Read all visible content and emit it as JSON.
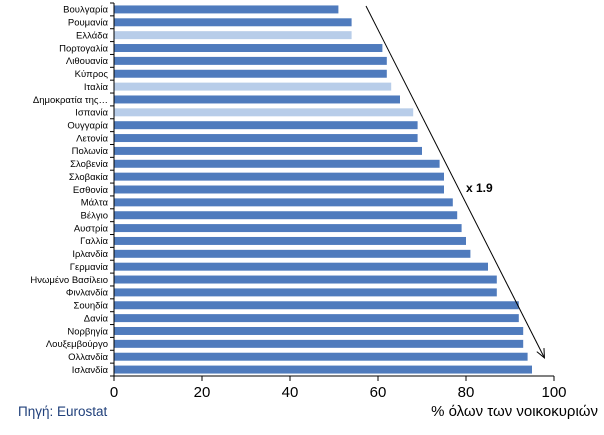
{
  "chart_data": {
    "type": "bar",
    "orientation": "horizontal",
    "categories": [
      "Βουλγαρία",
      "Ρουμανία",
      "Ελλάδα",
      "Πορτογαλία",
      "Λιθουανία",
      "Κύπρος",
      "Ιταλία",
      "Δημοκρατία της…",
      "Ισπανία",
      "Ουγγαρία",
      "Λετονία",
      "Πολωνία",
      "Σλοβενία",
      "Σλοβακία",
      "Εσθονία",
      "Μάλτα",
      "Βέλγιο",
      "Αυστρία",
      "Γαλλία",
      "Ιρλανδία",
      "Γερμανία",
      "Ηνωμένο Βασίλειο",
      "Φινλανδία",
      "Σουηδία",
      "Δανία",
      "Νορβηγία",
      "Λουξεμβούργο",
      "Ολλανδία",
      "Ισλανδία"
    ],
    "values": [
      51,
      54,
      54,
      61,
      62,
      62,
      63,
      65,
      68,
      69,
      69,
      70,
      74,
      75,
      75,
      77,
      78,
      79,
      80,
      81,
      85,
      87,
      87,
      92,
      92,
      93,
      93,
      94,
      95
    ],
    "highlighted": [
      false,
      false,
      true,
      false,
      false,
      false,
      true,
      false,
      true,
      false,
      false,
      false,
      false,
      false,
      false,
      false,
      false,
      false,
      false,
      false,
      false,
      false,
      false,
      false,
      false,
      false,
      false,
      false,
      false
    ],
    "colors": {
      "bar": "#4f7bbd",
      "bar_highlight": "#b8cde9"
    },
    "xlim": [
      0,
      100
    ],
    "xticks": [
      0,
      20,
      40,
      60,
      80,
      100
    ],
    "xlabel": "% όλων των νοικοκυριών",
    "title": "",
    "annotation": {
      "text": "x 1.9",
      "arrow": "diagonal down-right"
    },
    "source": "Πηγή: Eurostat",
    "grid": false
  }
}
